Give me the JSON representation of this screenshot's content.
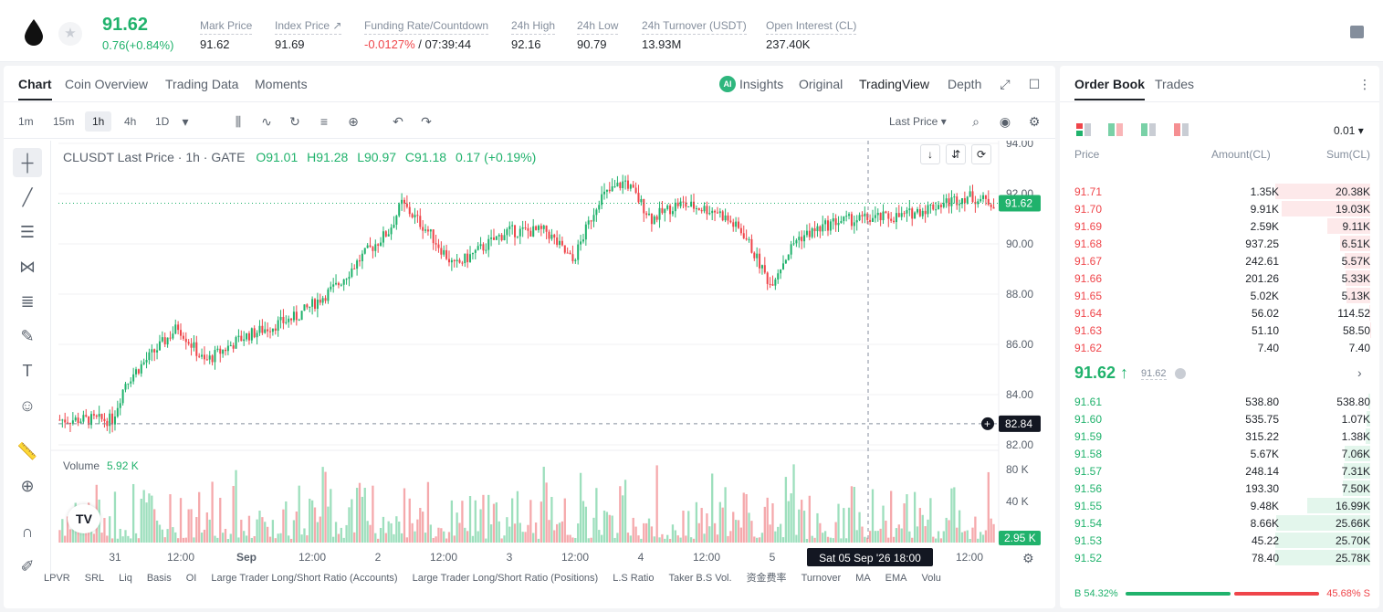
{
  "ticker": {
    "last_price": "91.62",
    "change": "0.76(+0.84%)",
    "stats": [
      {
        "label": "Mark Price",
        "value": "91.62"
      },
      {
        "label": "Index Price ↗",
        "value": "91.69"
      },
      {
        "label": "Funding Rate/Countdown",
        "value": "-0.0127%",
        "value2": " / 07:39:44"
      },
      {
        "label": "24h High",
        "value": "92.16"
      },
      {
        "label": "24h Low",
        "value": "90.79"
      },
      {
        "label": "24h Turnover (USDT)",
        "value": "13.93M"
      },
      {
        "label": "Open Interest (CL)",
        "value": "237.40K"
      }
    ]
  },
  "chart_tabs": [
    "Chart",
    "Coin Overview",
    "Trading Data",
    "Moments"
  ],
  "view_tabs": [
    "Insights",
    "Original",
    "TradingView",
    "Depth"
  ],
  "ai_badge": "AI",
  "intervals": [
    "1m",
    "15m",
    "1h",
    "4h",
    "1D"
  ],
  "last_price_select": "Last Price ▾",
  "chart_header": {
    "symbol": "CLUSDT Last Price · 1h · GATE",
    "o": "O91.01",
    "h": "H91.28",
    "l": "L90.97",
    "c": "C91.18",
    "chg": "0.17 (+0.19%)"
  },
  "volume": {
    "label": "Volume",
    "value": "5.92 K"
  },
  "crosshair_time": "Sat 05 Sep '26   18:00",
  "bottom_indicators": [
    "LPVR",
    "SRL",
    "Liq",
    "Basis",
    "OI",
    "Large Trader Long/Short Ratio (Accounts)",
    "Large Trader Long/Short Ratio (Positions)",
    "L.S Ratio",
    "Taker B.S Vol.",
    "资金费率",
    "Turnover",
    "MA",
    "EMA",
    "Volu"
  ],
  "orderbook": {
    "tabs": [
      "Order Book",
      "Trades"
    ],
    "precision": "0.01 ▾",
    "headers": [
      "Price",
      "Amount(CL)",
      "Sum(CL)"
    ],
    "asks": [
      {
        "p": "91.71",
        "a": "1.35K",
        "s": "20.38K",
        "d": 1.0
      },
      {
        "p": "91.70",
        "a": "9.91K",
        "s": "19.03K",
        "d": 0.93
      },
      {
        "p": "91.69",
        "a": "2.59K",
        "s": "9.11K",
        "d": 0.45
      },
      {
        "p": "91.68",
        "a": "937.25",
        "s": "6.51K",
        "d": 0.32
      },
      {
        "p": "91.67",
        "a": "242.61",
        "s": "5.57K",
        "d": 0.27
      },
      {
        "p": "91.66",
        "a": "201.26",
        "s": "5.33K",
        "d": 0.26
      },
      {
        "p": "91.65",
        "a": "5.02K",
        "s": "5.13K",
        "d": 0.25
      },
      {
        "p": "91.64",
        "a": "56.02",
        "s": "114.52",
        "d": 0.006
      },
      {
        "p": "91.63",
        "a": "51.10",
        "s": "58.50",
        "d": 0.003
      },
      {
        "p": "91.62",
        "a": "7.40",
        "s": "7.40",
        "d": 0.0004
      }
    ],
    "mid": {
      "price": "91.62 ↑",
      "mark": "91.62"
    },
    "bids": [
      {
        "p": "91.61",
        "a": "538.80",
        "s": "538.80",
        "d": 0.02
      },
      {
        "p": "91.60",
        "a": "535.75",
        "s": "1.07K",
        "d": 0.04
      },
      {
        "p": "91.59",
        "a": "315.22",
        "s": "1.38K",
        "d": 0.05
      },
      {
        "p": "91.58",
        "a": "5.67K",
        "s": "7.06K",
        "d": 0.27
      },
      {
        "p": "91.57",
        "a": "248.14",
        "s": "7.31K",
        "d": 0.28
      },
      {
        "p": "91.56",
        "a": "193.30",
        "s": "7.50K",
        "d": 0.29
      },
      {
        "p": "91.55",
        "a": "9.48K",
        "s": "16.99K",
        "d": 0.66
      },
      {
        "p": "91.54",
        "a": "8.66K",
        "s": "25.66K",
        "d": 0.99
      },
      {
        "p": "91.53",
        "a": "45.22",
        "s": "25.70K",
        "d": 1.0
      },
      {
        "p": "91.52",
        "a": "78.40",
        "s": "25.78K",
        "d": 1.0
      }
    ],
    "ratio": {
      "buy": "B 54.32%",
      "sell": "45.68% S",
      "buy_frac": 0.5432
    }
  },
  "chart_data": {
    "type": "candlestick",
    "y_ticks": [
      "94.00",
      "92.00",
      "90.00",
      "88.00",
      "86.00",
      "84.00",
      "82.00"
    ],
    "ylim": [
      82,
      94
    ],
    "vol_ticks": [
      "80 K",
      "40 K"
    ],
    "x_ticks": [
      "31",
      "12:00",
      "Sep",
      "12:00",
      "2",
      "12:00",
      "3",
      "12:00",
      "4",
      "12:00",
      "5",
      "12:00"
    ],
    "price_tag": "91.62",
    "cross_tag": "82.84",
    "vol_tag": "2.95 K",
    "candles_summary": {
      "start": 83.0,
      "end": 91.62,
      "high": 92.9,
      "low": 82.8
    },
    "key_points": [
      [
        0,
        83.0
      ],
      [
        20,
        83.0
      ],
      [
        25,
        84.5
      ],
      [
        35,
        85.6
      ],
      [
        45,
        86.7
      ],
      [
        55,
        85.3
      ],
      [
        70,
        86.3
      ],
      [
        90,
        87.1
      ],
      [
        105,
        88.3
      ],
      [
        115,
        89.5
      ],
      [
        125,
        90.5
      ],
      [
        130,
        91.6
      ],
      [
        140,
        90.5
      ],
      [
        150,
        89.1
      ],
      [
        160,
        89.8
      ],
      [
        170,
        90.5
      ],
      [
        185,
        90.5
      ],
      [
        195,
        89.3
      ],
      [
        205,
        91.8
      ],
      [
        215,
        92.5
      ],
      [
        225,
        91.0
      ],
      [
        235,
        91.6
      ],
      [
        250,
        91.3
      ],
      [
        260,
        90.4
      ],
      [
        270,
        88.4
      ],
      [
        280,
        90.2
      ],
      [
        295,
        90.9
      ],
      [
        320,
        91.1
      ],
      [
        335,
        91.6
      ],
      [
        345,
        91.9
      ],
      [
        355,
        91.62
      ]
    ]
  }
}
